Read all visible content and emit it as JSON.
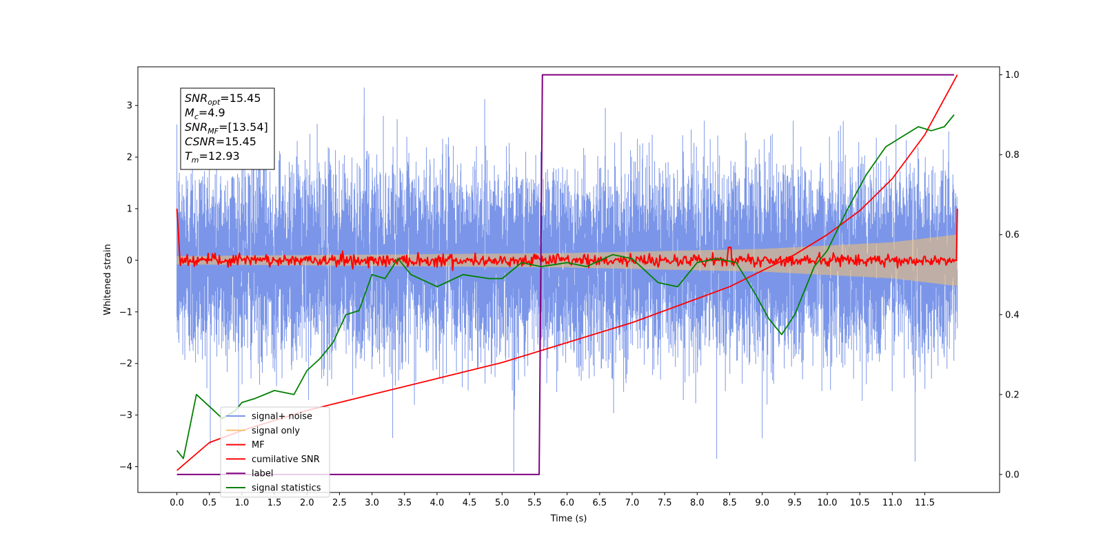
{
  "chart_data": {
    "type": "line",
    "xlabel": "Time (s)",
    "ylabel": "Whitened strain",
    "xlim": [
      -0.6,
      12.65
    ],
    "ylim": [
      -4.5,
      3.75
    ],
    "y2lim": [
      -0.045,
      1.02
    ],
    "x_ticks": [
      0.0,
      0.5,
      1.0,
      1.5,
      2.0,
      2.5,
      3.0,
      3.5,
      4.0,
      4.5,
      5.0,
      5.5,
      6.0,
      6.5,
      7.0,
      7.5,
      8.0,
      8.5,
      9.0,
      9.5,
      10.0,
      10.5,
      11.0,
      11.5
    ],
    "x_tick_labels": [
      "0.0",
      "0.5",
      "1.0",
      "1.5",
      "2.0",
      "2.5",
      "3.0",
      "3.5",
      "4.0",
      "4.5",
      "5.0",
      "5.5",
      "6.0",
      "6.5",
      "7.0",
      "7.5",
      "8.0",
      "8.5",
      "9.0",
      "9.5",
      "10.0",
      "10.5",
      "11.0",
      "11.5"
    ],
    "y_ticks": [
      3,
      2,
      1,
      0,
      -1,
      -2,
      -3,
      -4
    ],
    "y_tick_labels": [
      "3",
      "2",
      "1",
      "0",
      "−1",
      "−2",
      "−3",
      "−4"
    ],
    "y2_ticks": [
      1.0,
      0.8,
      0.6,
      0.4,
      0.2,
      0.0
    ],
    "y2_tick_labels": [
      "1.0",
      "0.8",
      "0.6",
      "0.4",
      "0.2",
      "0.0"
    ],
    "grid": false,
    "legend_position": "lower-left",
    "annotation": {
      "lines": [
        {
          "main": "SNR",
          "sub": "opt",
          "value": "=15.45"
        },
        {
          "main": "M",
          "sub": "c",
          "value": "=4.9"
        },
        {
          "main": "SNR",
          "sub": "MF",
          "value": "=[13.54]"
        },
        {
          "main": "CSNR",
          "sub": "",
          "value": "=15.45"
        },
        {
          "main": "T",
          "sub": "m",
          "value": "=12.93"
        }
      ]
    },
    "series": [
      {
        "name": "signal+ noise",
        "color": "#7b96e8",
        "axis": "left",
        "kind": "noise_band",
        "x_range": [
          0.0,
          12.0
        ],
        "typical_upper": 1.6,
        "typical_lower": -1.6,
        "max": 3.35,
        "min": -4.1
      },
      {
        "name": "signal only",
        "color": "#f5c36e",
        "axis": "left",
        "kind": "chirp_envelope",
        "x_range": [
          0.0,
          12.0
        ],
        "amplitude_points": [
          [
            0.0,
            0.08
          ],
          [
            6.0,
            0.14
          ],
          [
            9.0,
            0.22
          ],
          [
            11.0,
            0.35
          ],
          [
            12.0,
            0.5
          ]
        ]
      },
      {
        "name": "MF",
        "color": "#ff0000",
        "axis": "left",
        "kind": "noisy_flat",
        "x_range": [
          0.0,
          12.0
        ],
        "start_value": 1.0,
        "level": 0.0,
        "spread": 0.12,
        "end_value": 1.0
      },
      {
        "name": "cumilative SNR",
        "color": "#ff0000",
        "axis": "right",
        "x": [
          0.0,
          0.5,
          1.0,
          1.5,
          2.0,
          3.0,
          4.0,
          5.0,
          6.0,
          7.0,
          8.0,
          8.5,
          9.0,
          9.5,
          10.0,
          10.5,
          11.0,
          11.5,
          12.0
        ],
        "y": [
          0.01,
          0.08,
          0.11,
          0.135,
          0.16,
          0.2,
          0.24,
          0.28,
          0.33,
          0.38,
          0.44,
          0.47,
          0.51,
          0.55,
          0.6,
          0.66,
          0.74,
          0.85,
          1.0
        ]
      },
      {
        "name": "label",
        "color": "#800080",
        "axis": "right",
        "x": [
          0.0,
          5.57,
          5.62,
          11.95
        ],
        "y": [
          0.0,
          0.0,
          1.0,
          1.0
        ]
      },
      {
        "name": "signal statistics",
        "color": "#008000",
        "axis": "right",
        "x": [
          0.0,
          0.1,
          0.2,
          0.3,
          0.5,
          0.7,
          0.9,
          1.0,
          1.2,
          1.5,
          1.8,
          2.0,
          2.2,
          2.4,
          2.6,
          2.8,
          3.0,
          3.2,
          3.4,
          3.6,
          4.0,
          4.4,
          4.8,
          5.0,
          5.3,
          5.6,
          6.0,
          6.3,
          6.7,
          7.0,
          7.4,
          7.7,
          8.0,
          8.3,
          8.6,
          8.9,
          9.1,
          9.3,
          9.5,
          9.8,
          10.0,
          10.3,
          10.6,
          10.9,
          11.2,
          11.4,
          11.6,
          11.8,
          11.95
        ],
        "y": [
          0.06,
          0.04,
          0.12,
          0.2,
          0.17,
          0.14,
          0.16,
          0.18,
          0.19,
          0.21,
          0.2,
          0.26,
          0.29,
          0.33,
          0.4,
          0.41,
          0.5,
          0.49,
          0.54,
          0.5,
          0.47,
          0.5,
          0.49,
          0.49,
          0.53,
          0.52,
          0.53,
          0.52,
          0.55,
          0.54,
          0.48,
          0.47,
          0.53,
          0.54,
          0.53,
          0.45,
          0.39,
          0.35,
          0.4,
          0.52,
          0.56,
          0.66,
          0.75,
          0.82,
          0.85,
          0.87,
          0.86,
          0.87,
          0.9
        ]
      }
    ]
  }
}
